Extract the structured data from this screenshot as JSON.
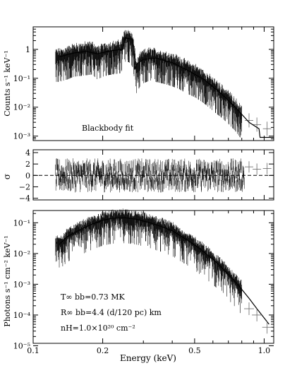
{
  "chart_data": [
    {
      "panel": "top",
      "type": "line",
      "xscale": "log",
      "yscale": "log",
      "xlim": [
        0.1,
        1.1
      ],
      "ylim": [
        0.0007,
        6
      ],
      "ylabel": "Counts s⁻¹ keV⁻¹",
      "annotation": "Blackbody fit",
      "yticks": [
        {
          "v": 1,
          "label": "1"
        },
        {
          "v": 0.1,
          "label": "10⁻¹"
        },
        {
          "v": 0.01,
          "label": "10⁻²"
        },
        {
          "v": 0.001,
          "label": "10⁻³"
        }
      ],
      "series": [
        {
          "role": "data",
          "x": [
            0.13,
            0.14,
            0.15,
            0.16,
            0.17,
            0.18,
            0.19,
            0.2,
            0.21,
            0.22,
            0.23,
            0.24,
            0.25,
            0.26,
            0.27,
            0.28,
            0.29,
            0.3,
            0.32,
            0.34,
            0.36,
            0.38,
            0.4,
            0.43,
            0.46,
            0.5,
            0.55,
            0.6,
            0.65,
            0.7,
            0.75,
            0.8,
            0.86,
            0.93,
            1.03
          ],
          "y": [
            0.5,
            0.6,
            0.75,
            0.8,
            0.85,
            0.9,
            0.6,
            0.75,
            0.85,
            0.9,
            0.95,
            1.0,
            2.5,
            2.4,
            1.6,
            0.2,
            0.35,
            0.45,
            0.55,
            0.5,
            0.45,
            0.4,
            0.35,
            0.28,
            0.2,
            0.15,
            0.09,
            0.05,
            0.03,
            0.018,
            0.01,
            0.005,
            0.003,
            0.0025,
            0.0018
          ]
        },
        {
          "role": "model",
          "x": [
            0.13,
            0.15,
            0.17,
            0.19,
            0.21,
            0.23,
            0.245,
            0.25,
            0.27,
            0.275,
            0.28,
            0.3,
            0.34,
            0.4,
            0.46,
            0.55,
            0.65,
            0.75,
            0.86,
            0.95,
            0.96,
            1.1
          ],
          "y": [
            0.55,
            0.75,
            0.85,
            0.7,
            0.85,
            0.95,
            1.0,
            2.5,
            2.2,
            0.2,
            0.3,
            0.45,
            0.5,
            0.35,
            0.2,
            0.09,
            0.03,
            0.01,
            0.003,
            0.0018,
            0.0009,
            0.0009
          ]
        }
      ]
    },
    {
      "panel": "middle",
      "type": "scatter",
      "xscale": "log",
      "xlim": [
        0.1,
        1.1
      ],
      "ylim": [
        -4.3,
        4.5
      ],
      "ylabel": "σ",
      "yticks": [
        {
          "v": 4,
          "label": "4"
        },
        {
          "v": 2,
          "label": "2"
        },
        {
          "v": 0,
          "label": "0"
        },
        {
          "v": -2,
          "label": "−2"
        },
        {
          "v": -4,
          "label": "−4"
        }
      ],
      "reference_line": 0,
      "residual_amplitude_sigma": 2.5
    },
    {
      "panel": "bottom",
      "type": "line",
      "xscale": "log",
      "yscale": "log",
      "xlim": [
        0.1,
        1.1
      ],
      "ylim": [
        1.2e-05,
        0.25
      ],
      "xlabel": "Energy (keV)",
      "ylabel": "Photons s⁻¹ cm⁻² keV⁻¹",
      "xticks": [
        {
          "v": 0.1,
          "label": "0.1"
        },
        {
          "v": 0.2,
          "label": "0.2"
        },
        {
          "v": 0.5,
          "label": "0.5"
        },
        {
          "v": 1.0,
          "label": "1.0"
        }
      ],
      "yticks": [
        {
          "v": 0.1,
          "label": "10⁻¹"
        },
        {
          "v": 0.01,
          "label": "10⁻²"
        },
        {
          "v": 0.001,
          "label": "10⁻³"
        },
        {
          "v": 0.0001,
          "label": "10⁻⁴"
        },
        {
          "v": 1e-05,
          "label": "10⁻⁵"
        }
      ],
      "annotations": [
        "T∞ bb=0.73 MK",
        "R∞ bb=4.4 (d/120 pc) km",
        "nH=1.0×10²⁰ cm⁻²"
      ],
      "series": [
        {
          "role": "model",
          "x": [
            0.13,
            0.14,
            0.16,
            0.18,
            0.2,
            0.22,
            0.25,
            0.28,
            0.32,
            0.36,
            0.4,
            0.45,
            0.5,
            0.55,
            0.6,
            0.65,
            0.7,
            0.75,
            0.8,
            0.86,
            0.93,
            1.0,
            1.05
          ],
          "y": [
            0.02,
            0.035,
            0.06,
            0.09,
            0.12,
            0.14,
            0.145,
            0.13,
            0.1,
            0.075,
            0.055,
            0.032,
            0.019,
            0.011,
            0.0065,
            0.0037,
            0.0021,
            0.0012,
            0.00068,
            0.00035,
            0.00016,
            8e-05,
            5e-05
          ]
        },
        {
          "role": "data-errors",
          "x": [
            0.86,
            0.93,
            1.03
          ],
          "y": [
            0.00016,
            0.0001,
            4e-05
          ]
        }
      ]
    }
  ]
}
